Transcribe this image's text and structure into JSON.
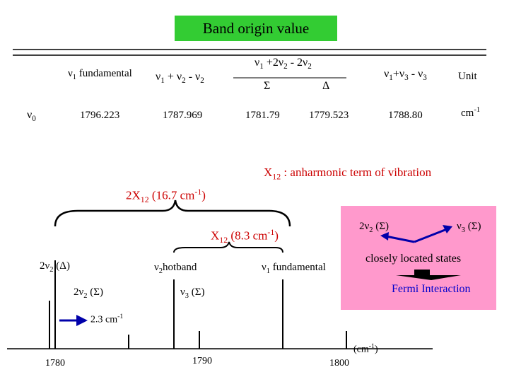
{
  "title": "Band origin value",
  "table": {
    "row_label": "ν",
    "row_label_sub": "0",
    "header_top": {
      "a": "ν",
      "a_sub": "1",
      "b": " +2ν",
      "b_sub": "2",
      "c": " - 2ν",
      "c_sub": "2"
    },
    "sigma": "Σ",
    "delta": "Δ",
    "col1": {
      "a": "ν",
      "a_sub": "1",
      "rest": " fundamental"
    },
    "col2": {
      "a": "ν",
      "a_sub": "1",
      "b": " + ν",
      "b_sub": "2",
      "c": " - ν",
      "c_sub": "2"
    },
    "col5": {
      "a": "ν",
      "a_sub": "1",
      "b": "+ν",
      "b_sub": "3",
      "c": " - ν",
      "c_sub": "3"
    },
    "unit_header": "Unit",
    "values": [
      "1796.223",
      "1787.969",
      "1781.79",
      "1779.523",
      "1788.80"
    ],
    "unit_value": "cm",
    "unit_sup": "-1"
  },
  "annotations": {
    "x12_def": {
      "a": "X",
      "a_sub": "12",
      "b": " : anharmonic term of vibration"
    },
    "two_x12": {
      "a": "2X",
      "a_sub": "12",
      "b": " (16.7 cm",
      "b_sup": "-1",
      "c": ")"
    },
    "x12": {
      "a": "X",
      "a_sub": "12",
      "b": " (8.3 cm",
      "b_sup": "-1",
      "c": ")"
    }
  },
  "levels": {
    "two_nu2_delta": {
      "a": "2ν",
      "a_sub": "2",
      "b": " (Δ)"
    },
    "nu2_hotband": {
      "a": "ν",
      "a_sub": "2",
      "b": "hotband"
    },
    "nu1_fund": {
      "a": "ν",
      "a_sub": "1",
      "b": " fundamental"
    },
    "two_nu2_sigma": {
      "a": "2ν",
      "a_sub": "2",
      "b": " (Σ)"
    },
    "nu3_sigma": {
      "a": "ν",
      "a_sub": "3",
      "b": " (Σ)"
    },
    "gap": {
      "a": "2.3 cm",
      "a_sup": "-1"
    }
  },
  "fermi": {
    "left_state": {
      "a": "2ν",
      "a_sub": "2",
      "b": " (Σ)"
    },
    "right_state": {
      "a": "ν",
      "a_sub": "3",
      "b": " (Σ)"
    },
    "closely": "closely located states",
    "interaction": "Fermi Interaction"
  },
  "axis": {
    "ticks": [
      "1780",
      "1790",
      "1800"
    ],
    "unit": {
      "a": "(cm",
      "a_sup": "-1",
      "b": ")"
    }
  },
  "colors": {
    "title_bg": "#33cc33",
    "fermi_bg": "#ff99cc",
    "accent_red": "#cc0000",
    "accent_blue": "#0000cc",
    "arrow_blue": "#0000aa"
  }
}
